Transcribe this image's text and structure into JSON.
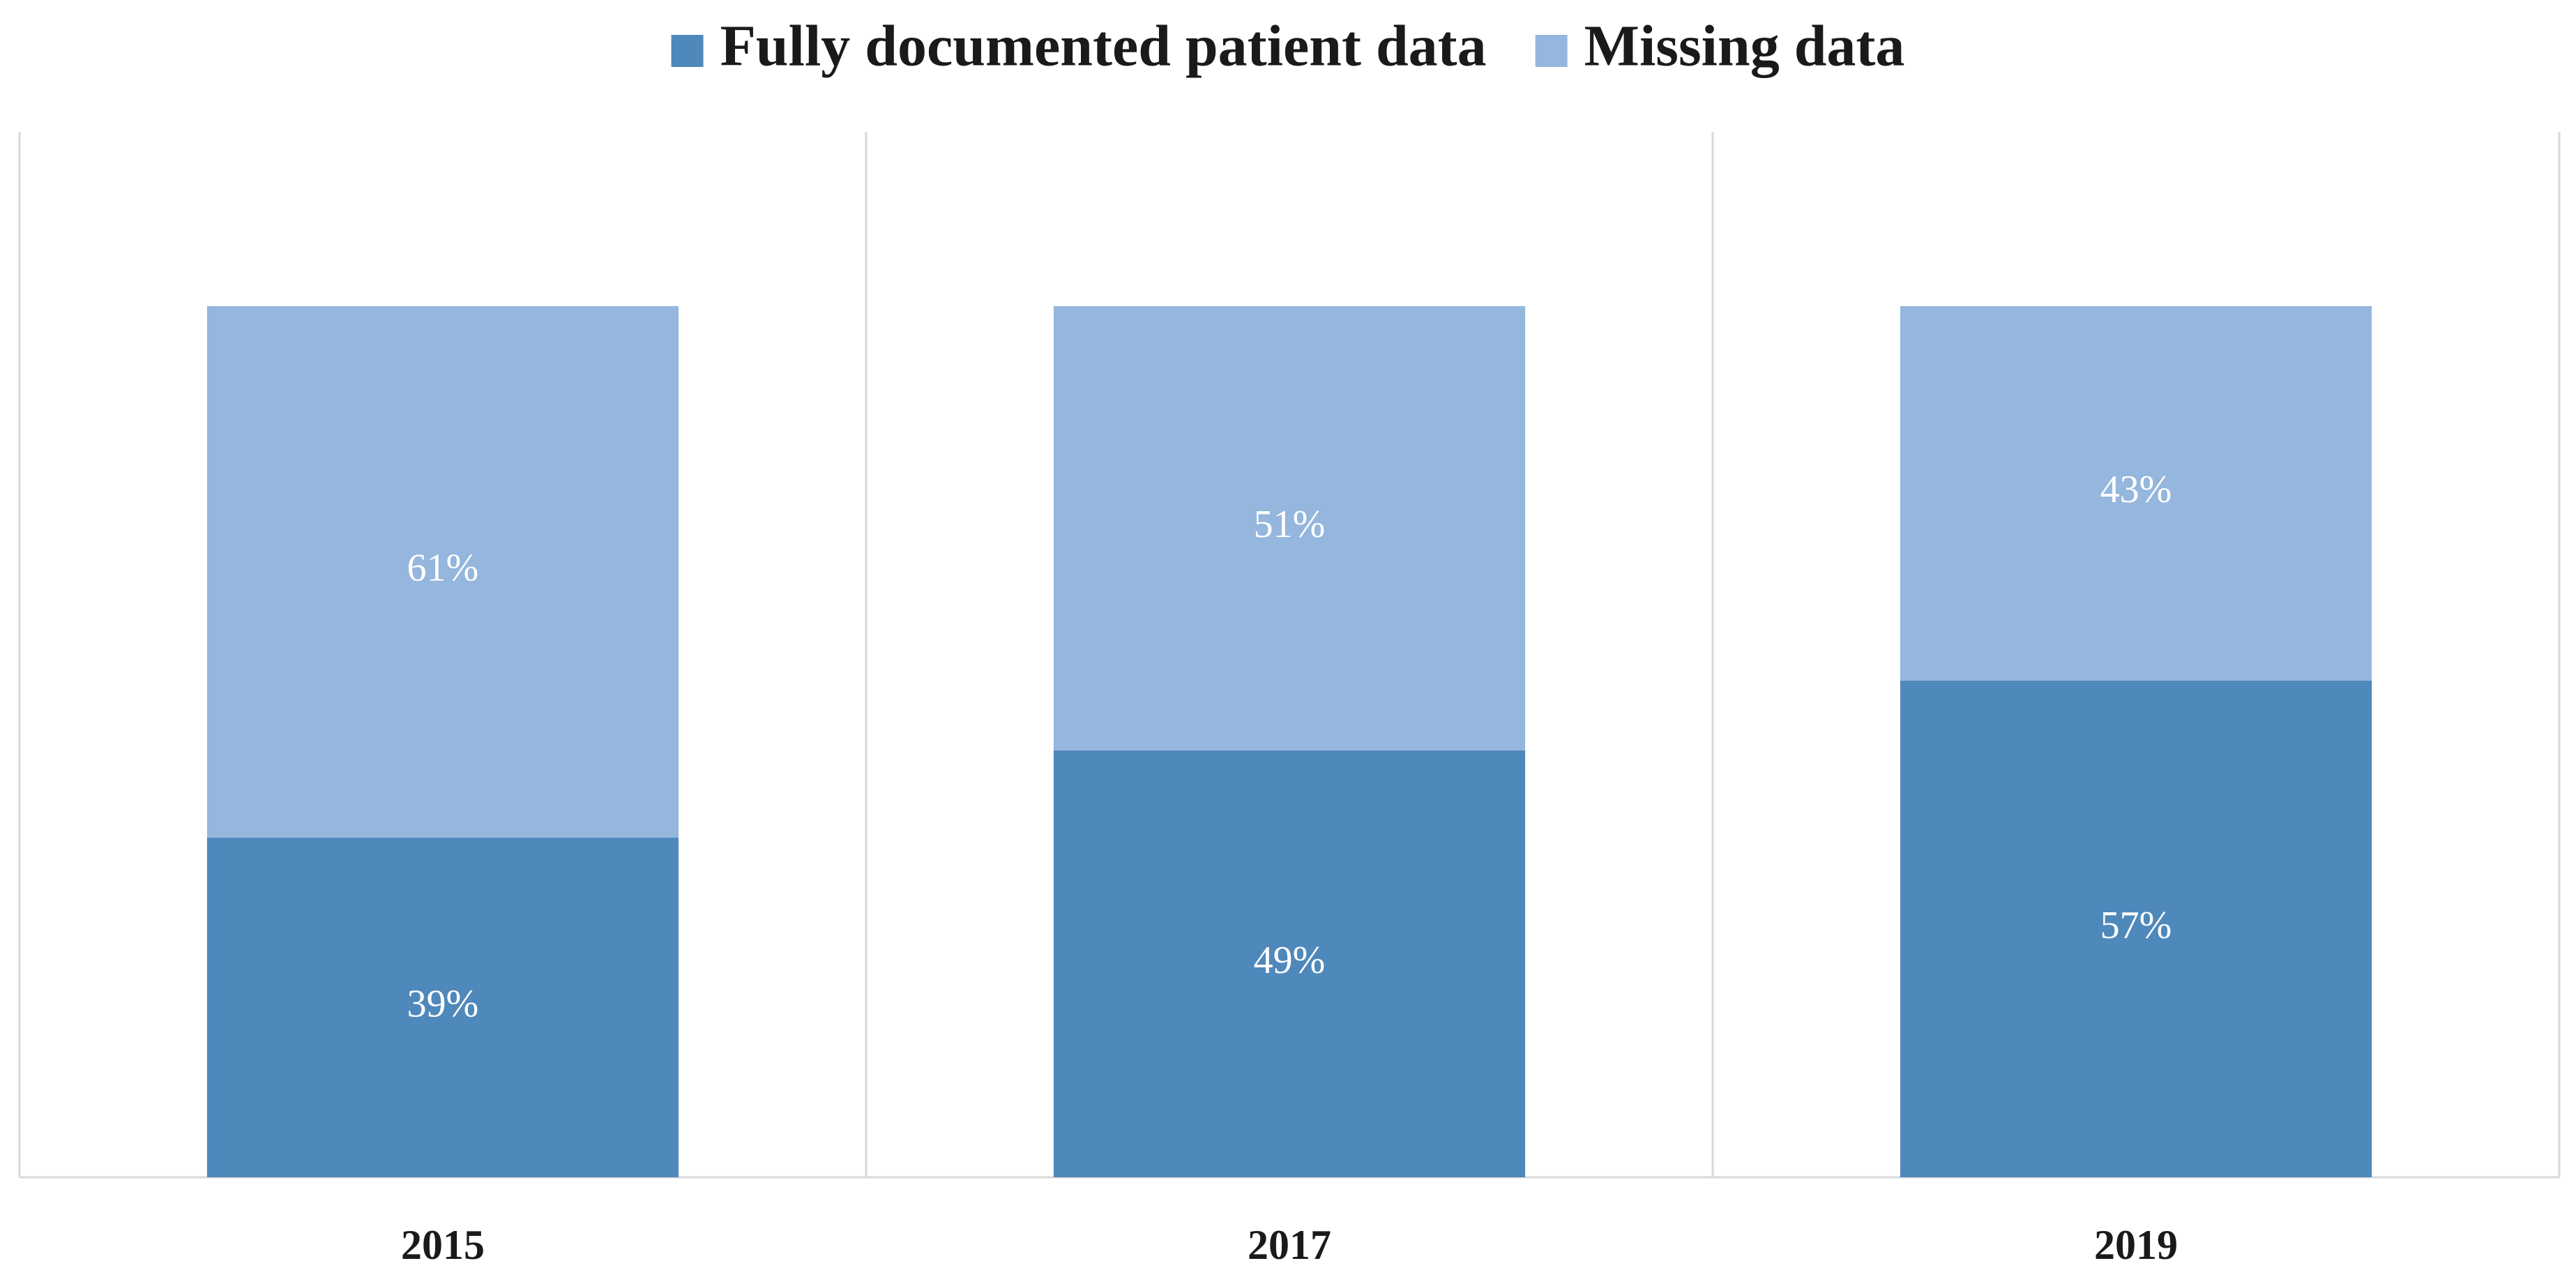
{
  "chart_data": {
    "type": "stacked_bar",
    "categories": [
      "2015",
      "2017",
      "2019"
    ],
    "series": [
      {
        "name": "Fully documented patient data",
        "color": "#4f88bb",
        "values": [
          39,
          49,
          57
        ],
        "value_labels": [
          "39%",
          "49%",
          "57%"
        ]
      },
      {
        "name": "Missing data",
        "color": "#95b6dd",
        "values": [
          61,
          51,
          43
        ],
        "value_labels": [
          "61%",
          "51%",
          "43%"
        ]
      }
    ],
    "ylim": [
      0,
      120
    ],
    "legend": "top"
  }
}
